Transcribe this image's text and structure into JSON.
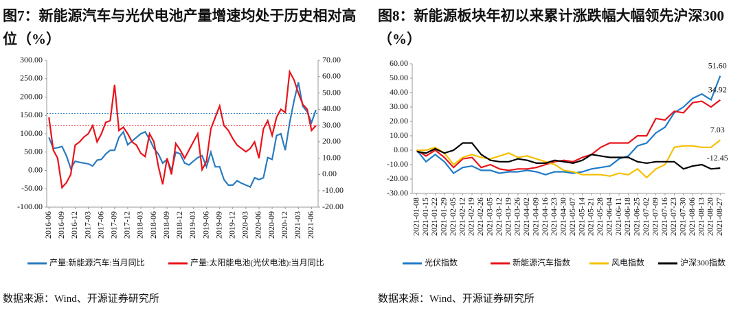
{
  "chart_data": [
    {
      "type": "line",
      "title": "图7：新能源汽车与光伏电池产量增速均处于历史相对高位（%）",
      "source": "数据来源：Wind、开源证券研究所",
      "categories": [
        "2016-06",
        null,
        null,
        "2016-09",
        null,
        null,
        "2016-12",
        null,
        null,
        "2017-03",
        null,
        null,
        "2017-06",
        null,
        null,
        "2017-09",
        null,
        null,
        "2017-12",
        null,
        null,
        "2018-03",
        null,
        null,
        "2018-06",
        null,
        null,
        "2018-09",
        null,
        null,
        "2018-12",
        null,
        null,
        "2019-03",
        null,
        null,
        "2019-06",
        null,
        null,
        "2019-09",
        null,
        null,
        "2019-12",
        null,
        null,
        "2020-03",
        null,
        null,
        "2020-06",
        null,
        null,
        "2020-09",
        null,
        null,
        "2020-12",
        null,
        null,
        "2021-03",
        null,
        null,
        "2021-06",
        null
      ],
      "series": [
        {
          "name": "产量:新能源汽车:当月同比",
          "color": "#2a7bbf",
          "values": [
            90,
            60,
            62,
            65,
            40,
            5,
            25,
            22,
            20,
            18,
            12,
            28,
            30,
            45,
            55,
            55,
            90,
            105,
            70,
            80,
            90,
            100,
            105,
            85,
            60,
            45,
            20,
            30,
            0,
            50,
            45,
            20,
            15,
            25,
            35,
            40,
            10,
            50,
            10,
            10,
            -25,
            -40,
            -40,
            -28,
            -35,
            -40,
            -45,
            -20,
            -25,
            -20,
            35,
            30,
            95,
            100,
            55,
            130,
            190,
            240,
            175,
            160,
            130,
            165
          ]
        },
        {
          "name": "产量:太阳能电池(光伏电池):当月同比",
          "color": "#e8141b",
          "axis": "y2",
          "values": [
            35,
            15,
            10,
            -8,
            -5,
            0,
            18,
            20,
            23,
            25,
            30,
            20,
            25,
            32,
            33,
            55,
            27,
            29,
            25,
            20,
            18,
            13,
            11,
            25,
            20,
            5,
            -6,
            10,
            0,
            19,
            15,
            10,
            15,
            20,
            25,
            3,
            8,
            28,
            35,
            42,
            30,
            27,
            22,
            18,
            16,
            14,
            16,
            20,
            10,
            28,
            33,
            24,
            35,
            40,
            38,
            63,
            58,
            50,
            43,
            40,
            27,
            30
          ]
        }
      ],
      "ylim": [
        -100,
        300
      ],
      "yticks": [
        {
          "value": -100,
          "label": "-100.00"
        },
        {
          "value": -50,
          "label": "-50.00"
        },
        {
          "value": 0,
          "label": "0.00"
        },
        {
          "value": 50,
          "label": "50.00"
        },
        {
          "value": 100,
          "label": "100.00"
        },
        {
          "value": 150,
          "label": "150.00"
        },
        {
          "value": 200,
          "label": "200.00"
        },
        {
          "value": 250,
          "label": "250.00"
        },
        {
          "value": 300,
          "label": "300.00"
        }
      ],
      "y2lim": [
        -20,
        70
      ],
      "y2ticks": [
        {
          "value": -20,
          "label": "-20.00"
        },
        {
          "value": -10,
          "label": "-10.00"
        },
        {
          "value": 0,
          "label": "0.00"
        },
        {
          "value": 10,
          "label": "10.00"
        },
        {
          "value": 20,
          "label": "20.00"
        },
        {
          "value": 30,
          "label": "30.00"
        },
        {
          "value": 40,
          "label": "40.00"
        },
        {
          "value": 50,
          "label": "50.00"
        },
        {
          "value": 60,
          "label": "60.00"
        },
        {
          "value": 70,
          "label": "70.00"
        }
      ],
      "ref_lines": [
        {
          "value": 155,
          "color": "#2a7bbf"
        },
        {
          "value": 30,
          "axis": "y2",
          "color": "#e8141b"
        }
      ],
      "grid": false,
      "legend": "bottom"
    },
    {
      "type": "line",
      "title": "图8：新能源板块年初以来累计涨跌幅大幅领先沪深300（%）",
      "source": "数据来源：Wind、开源证券研究所",
      "categories": [
        "2021-01-08",
        "2021-01-15",
        "2021-01-22",
        "2021-01-29",
        "2021-02-05",
        "2021-02-12",
        "2021-02-19",
        "2021-02-26",
        "2021-03-05",
        "2021-03-12",
        "2021-03-19",
        "2021-03-26",
        "2021-04-02",
        "2021-04-09",
        "2021-04-16",
        "2021-04-23",
        "2021-04-30",
        "2021-05-07",
        "2021-05-14",
        "2021-05-21",
        "2021-05-28",
        "2021-06-04",
        "2021-06-11",
        "2021-06-18",
        "2021-06-25",
        "2021-07-02",
        "2021-07-09",
        "2021-07-16",
        "2021-07-23",
        "2021-07-30",
        "2021-08-06",
        "2021-08-13",
        "2021-08-20",
        "2021-08-27"
      ],
      "series": [
        {
          "name": "光伏指数",
          "color": "#1f7bc8",
          "values": [
            0,
            -8,
            -3,
            -8,
            -16,
            -12,
            -11,
            -14,
            -14,
            -16,
            -15,
            -15,
            -14,
            -15,
            -17,
            -15,
            -15,
            -16,
            -15,
            -13,
            -12,
            -11,
            -6,
            -4,
            3,
            5,
            12,
            16,
            26,
            30,
            36,
            39,
            35,
            51.6
          ],
          "value_labels": [
            null,
            null,
            null,
            null,
            null,
            null,
            null,
            null,
            null,
            null,
            null,
            null,
            null,
            null,
            null,
            null,
            null,
            null,
            null,
            null,
            null,
            null,
            null,
            null,
            null,
            null,
            null,
            null,
            null,
            null,
            null,
            null,
            null,
            "51.60"
          ]
        },
        {
          "name": "新能源汽车指数",
          "color": "#e8141b",
          "values": [
            0,
            -4,
            0,
            -5,
            -12,
            -6,
            -5,
            -12,
            -10,
            -13,
            -14,
            -13,
            -13,
            -12,
            -10,
            -8,
            -7,
            -8,
            -5,
            -3,
            2,
            5,
            5,
            5,
            10,
            10,
            22,
            21,
            27,
            26,
            33,
            34,
            30,
            34.92
          ],
          "value_labels": [
            null,
            null,
            null,
            null,
            null,
            null,
            null,
            null,
            null,
            null,
            null,
            null,
            null,
            null,
            null,
            null,
            null,
            null,
            null,
            null,
            null,
            null,
            null,
            null,
            null,
            null,
            null,
            null,
            null,
            null,
            null,
            null,
            null,
            "34.92"
          ]
        },
        {
          "name": "风电指数",
          "color": "#f5c000",
          "values": [
            0,
            0,
            2,
            -2,
            -10,
            -5,
            -3,
            -5,
            -6,
            -4,
            -2,
            -5,
            -4,
            -6,
            -8,
            -10,
            -14,
            -15,
            -17,
            -17,
            -17,
            -18,
            -16,
            -17,
            -13,
            -19,
            -13,
            -10,
            2,
            3,
            3,
            2,
            2,
            7.03
          ],
          "value_labels": [
            null,
            null,
            null,
            null,
            null,
            null,
            null,
            null,
            null,
            null,
            null,
            null,
            null,
            null,
            null,
            null,
            null,
            null,
            null,
            null,
            null,
            null,
            null,
            null,
            null,
            null,
            null,
            null,
            null,
            null,
            null,
            null,
            null,
            "7.03"
          ]
        },
        {
          "name": "沪深300指数",
          "color": "#000000",
          "values": [
            -1,
            -2,
            1,
            -2,
            0,
            5,
            5,
            -3,
            -7,
            -8,
            -8,
            -6,
            -7,
            -9,
            -9,
            -7,
            -8,
            -9,
            -7,
            -3,
            -4,
            -5,
            -5,
            -5,
            -8,
            -9,
            -8,
            -8,
            -8,
            -13,
            -11,
            -10,
            -13,
            -12.45
          ],
          "value_labels": [
            null,
            null,
            null,
            null,
            null,
            null,
            null,
            null,
            null,
            null,
            null,
            null,
            null,
            null,
            null,
            null,
            null,
            null,
            null,
            null,
            null,
            null,
            null,
            null,
            null,
            null,
            null,
            null,
            null,
            null,
            null,
            null,
            null,
            "-12.45"
          ]
        }
      ],
      "ylim": [
        -30,
        60
      ],
      "yticks": [
        {
          "value": -30,
          "label": "-30.00"
        },
        {
          "value": -20,
          "label": "-20.00"
        },
        {
          "value": -10,
          "label": "-10.00"
        },
        {
          "value": 0,
          "label": "0.00"
        },
        {
          "value": 10,
          "label": "10.00"
        },
        {
          "value": 20,
          "label": "20.00"
        },
        {
          "value": 30,
          "label": "30.00"
        },
        {
          "value": 40,
          "label": "40.00"
        },
        {
          "value": 50,
          "label": "50.00"
        },
        {
          "value": 60,
          "label": "60.00"
        }
      ],
      "grid": false,
      "legend": "bottom"
    }
  ]
}
